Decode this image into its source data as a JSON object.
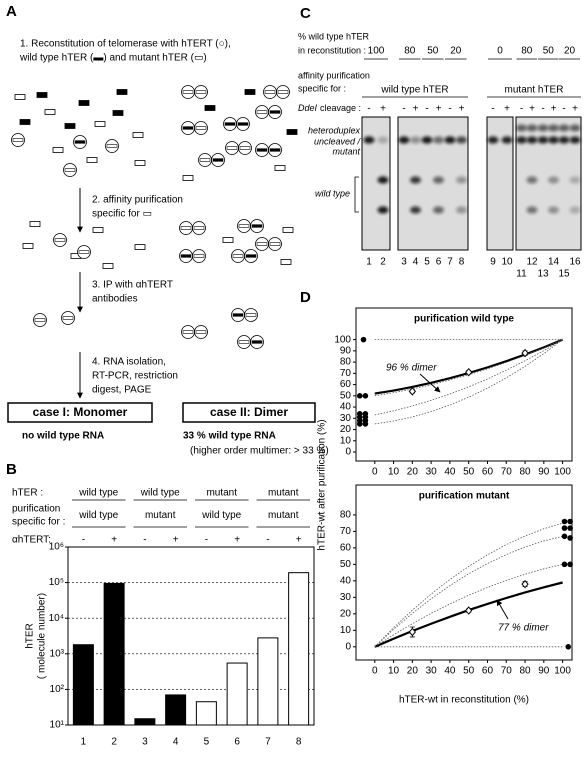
{
  "panel_labels": [
    "A",
    "B",
    "C",
    "D"
  ],
  "schematic": {
    "step1": [
      "1. Reconstitution of telomerase with hTERT (○),",
      "wild type hTER (▬) and mutant hTER (▭)"
    ],
    "step2": [
      "2. affinity purification",
      "specific for ▭"
    ],
    "step3": [
      "3. IP with αhTERT",
      "antibodies"
    ],
    "step4": [
      "4. RNA isolation,",
      "RT-PCR, restriction",
      "digest, PAGE"
    ],
    "case1": {
      "title": "case I: Monomer",
      "result": "no wild type RNA"
    },
    "case2": {
      "title": "case II: Dimer",
      "result": "33 % wild type RNA",
      "note": "(higher order multimer: > 33 %)"
    }
  },
  "gel": {
    "reconstitution_label": [
      "% wild type hTER",
      "in reconstitution :"
    ],
    "reconstitution_values": [
      "100",
      "80",
      "50",
      "20",
      "0",
      "80",
      "50",
      "20"
    ],
    "purification_label": [
      "affinity purification",
      "specific for :"
    ],
    "purification_groups": [
      "wild type hTER",
      "mutant hTER"
    ],
    "cleavage_label": {
      "enzyme": "DdeI",
      "text": "cleavage :"
    },
    "cleavage_signs": [
      "-",
      "+",
      "-",
      "+",
      "-",
      "+",
      "-",
      "+",
      "-",
      "+",
      "-",
      "+",
      "-",
      "+",
      "-",
      "+"
    ],
    "band_labels": {
      "heteroduplex": "heteroduplex",
      "uncleaved": [
        "uncleaved /",
        "mutant"
      ],
      "wild_type": "wild type"
    },
    "lanes": [
      "1",
      "2",
      "3",
      "4",
      "5",
      "6",
      "7",
      "8",
      "9",
      "10",
      "11",
      "12",
      "13",
      "14",
      "15",
      "16"
    ]
  },
  "chart_data": [
    {
      "type": "bar",
      "header_rows": [
        {
          "label": [
            "hTER :"
          ],
          "groups": [
            "wild type",
            "wild type",
            "mutant",
            "mutant"
          ]
        },
        {
          "label": [
            "purification",
            "specific for :"
          ],
          "groups": [
            "wild type",
            "mutant",
            "wild type",
            "mutant"
          ]
        },
        {
          "label": [
            "αhTERT:"
          ],
          "groups": [
            "-",
            "+",
            "-",
            "+",
            "-",
            "+",
            "-",
            "+"
          ]
        }
      ],
      "y_label": [
        "hTER",
        "( molecule number)"
      ],
      "categories": [
        "1",
        "2",
        "3",
        "4",
        "5",
        "6",
        "7",
        "8"
      ],
      "values": [
        1800,
        95000,
        15,
        70,
        45,
        550,
        2800,
        190000
      ],
      "colors": [
        "#000000",
        "#000000",
        "#000000",
        "#000000",
        "#ffffff",
        "#ffffff",
        "#ffffff",
        "#ffffff"
      ],
      "log_scale": true,
      "ylim": [
        10,
        1000000
      ],
      "yticks": [
        {
          "value": 10,
          "label": "10¹"
        },
        {
          "value": 100,
          "label": "10²"
        },
        {
          "value": 1000,
          "label": "10³"
        },
        {
          "value": 10000,
          "label": "10⁴"
        },
        {
          "value": 100000,
          "label": "10⁵"
        },
        {
          "value": 1000000,
          "label": "10⁶"
        }
      ],
      "grid": true
    },
    {
      "type": "line",
      "title": "purification wild type",
      "y_label": "hTER-wt after purification (%)",
      "annotation": "96 % dimer",
      "xlim": [
        -10,
        105
      ],
      "ylim": [
        -8,
        105
      ],
      "xticks": [
        0,
        10,
        20,
        30,
        40,
        50,
        60,
        70,
        80,
        90,
        100
      ],
      "yticks": [
        0,
        10,
        20,
        30,
        40,
        50,
        60,
        70,
        80,
        90,
        100
      ],
      "series": [
        {
          "kind": "line",
          "color": "#000000",
          "line_width": 2.2,
          "x": [
            0,
            10,
            20,
            30,
            40,
            50,
            60,
            70,
            80,
            90,
            100
          ],
          "values": [
            52,
            54.7,
            57.9,
            61.6,
            65.7,
            70.3,
            75.3,
            80.8,
            86.7,
            93.1,
            100
          ]
        },
        {
          "kind": "line",
          "color": "#555555",
          "line_width": 0.8,
          "dashed": true,
          "x": [
            0,
            10,
            20,
            30,
            40,
            50,
            60,
            70,
            80,
            90,
            100
          ],
          "values": [
            50,
            52.8,
            56,
            59.8,
            64,
            68.8,
            74,
            79.8,
            86,
            92.8,
            100
          ]
        },
        {
          "kind": "line",
          "color": "#555555",
          "line_width": 0.8,
          "dashed": true,
          "x": [
            0,
            10,
            20,
            30,
            40,
            50,
            60,
            70,
            80,
            90,
            100
          ],
          "values": [
            33,
            36.6,
            41,
            46,
            51.6,
            58,
            65,
            72.8,
            81.2,
            90.2,
            100
          ]
        },
        {
          "kind": "line",
          "color": "#555555",
          "line_width": 0.8,
          "dashed": true,
          "x": [
            0,
            10,
            20,
            30,
            40,
            50,
            60,
            70,
            80,
            90,
            100
          ],
          "values": [
            25,
            27.6,
            31.2,
            36,
            41.8,
            48.8,
            56.8,
            66,
            76.2,
            87.6,
            100
          ]
        },
        {
          "kind": "line",
          "color": "#555555",
          "line_width": 0.8,
          "dashed": true,
          "x": [
            0,
            100
          ],
          "values": [
            100,
            100
          ]
        },
        {
          "kind": "scatter",
          "marker": "diamond",
          "color": "#000000",
          "x": [
            20,
            50,
            80
          ],
          "values": [
            54,
            71,
            88
          ],
          "errors": [
            1.5,
            1.5,
            2
          ]
        },
        {
          "kind": "scatter",
          "marker": "dot",
          "color": "#000000",
          "x": [
            -6,
            -8,
            -5,
            -8,
            -5,
            -8,
            -5,
            -8,
            -5,
            -8,
            -5
          ],
          "values": [
            100,
            50,
            50,
            34,
            34,
            31,
            31,
            28,
            28,
            25,
            25
          ]
        }
      ]
    },
    {
      "type": "line",
      "title": "purification mutant",
      "x_label": "hTER-wt in reconstitution (%)",
      "annotation": "77 % dimer",
      "xlim": [
        -10,
        105
      ],
      "ylim": [
        -8,
        86
      ],
      "xticks": [
        0,
        10,
        20,
        30,
        40,
        50,
        60,
        70,
        80,
        90,
        100
      ],
      "yticks": [
        0,
        10,
        20,
        30,
        40,
        50,
        60,
        70,
        80
      ],
      "series": [
        {
          "kind": "line",
          "color": "#000000",
          "line_width": 2.2,
          "x": [
            0,
            10,
            20,
            30,
            40,
            50,
            60,
            70,
            80,
            90,
            100
          ],
          "values": [
            0,
            4.9,
            9.6,
            14,
            18.2,
            22.3,
            26,
            29.6,
            33,
            36.1,
            39
          ]
        },
        {
          "kind": "line",
          "color": "#555555",
          "line_width": 0.8,
          "dashed": true,
          "x": [
            0,
            10,
            20,
            30,
            40,
            50,
            60,
            70,
            80,
            90,
            100
          ],
          "values": [
            0,
            11.6,
            22.2,
            32,
            40.8,
            48.8,
            55.8,
            62,
            67.2,
            71.6,
            75
          ]
        },
        {
          "kind": "line",
          "color": "#555555",
          "line_width": 0.8,
          "dashed": true,
          "x": [
            0,
            10,
            20,
            30,
            40,
            50,
            60,
            70,
            80,
            90,
            100
          ],
          "values": [
            0,
            10.6,
            20.3,
            29.1,
            37.1,
            44.3,
            50.5,
            55.9,
            60.5,
            64.2,
            67
          ]
        },
        {
          "kind": "line",
          "color": "#555555",
          "line_width": 0.8,
          "dashed": true,
          "x": [
            0,
            10,
            20,
            30,
            40,
            50,
            60,
            70,
            80,
            90,
            100
          ],
          "values": [
            0,
            7.3,
            14,
            20.3,
            26,
            31.3,
            36,
            40.3,
            44,
            47.3,
            50
          ]
        },
        {
          "kind": "line",
          "color": "#555555",
          "line_width": 0.8,
          "dashed": true,
          "x": [
            0,
            100
          ],
          "values": [
            0,
            0
          ]
        },
        {
          "kind": "scatter",
          "marker": "diamond",
          "color": "#000000",
          "x": [
            20,
            50,
            80
          ],
          "values": [
            9,
            22,
            38
          ],
          "errors": [
            3,
            1,
            1.5
          ]
        },
        {
          "kind": "scatter",
          "marker": "dot",
          "color": "#000000",
          "x": [
            101,
            104,
            101,
            104,
            101,
            104,
            101,
            104,
            103
          ],
          "values": [
            76,
            76,
            72,
            72,
            67,
            66,
            50,
            50,
            0
          ]
        }
      ]
    }
  ]
}
